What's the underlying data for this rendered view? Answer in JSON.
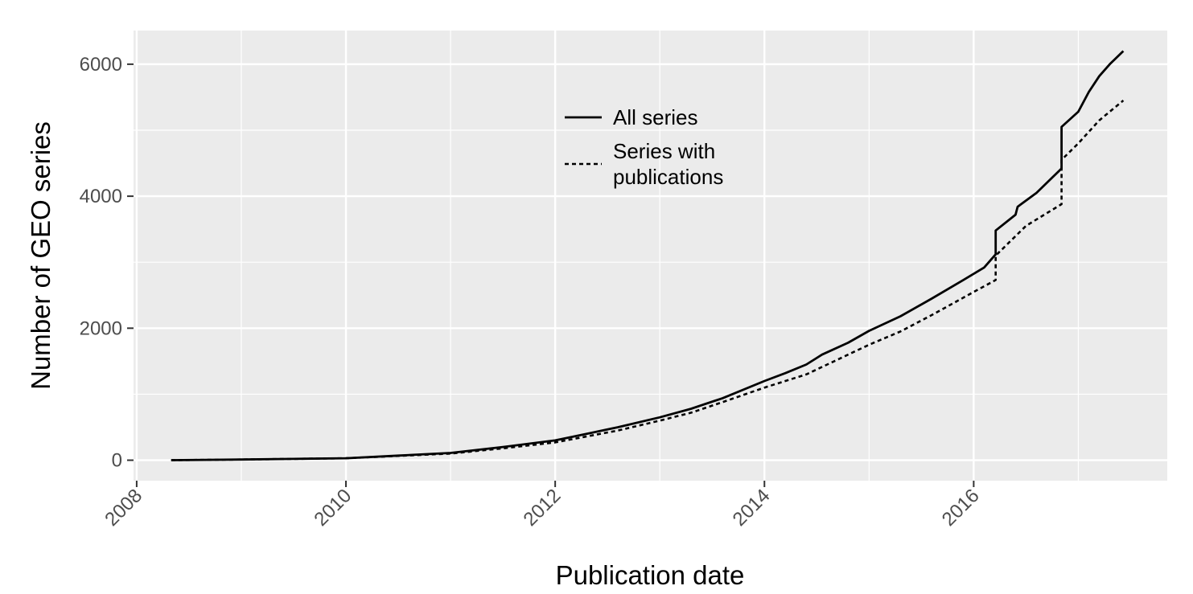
{
  "chart_data": {
    "type": "line",
    "title": "",
    "xlabel": "Publication date",
    "ylabel": "Number of GEO series",
    "xlim": [
      2007.97,
      2017.85
    ],
    "ylim": [
      -310,
      6510
    ],
    "x_ticks": [
      2008,
      2010,
      2012,
      2014,
      2016
    ],
    "x_tick_labels": [
      "2008",
      "2010",
      "2012",
      "2014",
      "2016"
    ],
    "y_ticks": [
      0,
      2000,
      4000,
      6000
    ],
    "y_tick_labels": [
      "0",
      "2000",
      "4000",
      "6000"
    ],
    "grid": true,
    "legend_position": "top-center",
    "legend": [
      {
        "label": "All series",
        "style": "solid"
      },
      {
        "label_lines": [
          "Series with",
          "publications"
        ],
        "style": "dashed"
      }
    ],
    "series": [
      {
        "name": "All series",
        "style": "solid",
        "x": [
          2008.33,
          2009.0,
          2009.5,
          2010.0,
          2010.5,
          2011.0,
          2011.5,
          2012.0,
          2012.3,
          2012.6,
          2013.0,
          2013.3,
          2013.6,
          2014.0,
          2014.2,
          2014.4,
          2014.55,
          2014.8,
          2015.0,
          2015.3,
          2015.6,
          2015.9,
          2016.1,
          2016.21,
          2016.21,
          2016.4,
          2016.42,
          2016.6,
          2016.84,
          2016.84,
          2017.0,
          2017.1,
          2017.2,
          2017.3,
          2017.43
        ],
        "y": [
          0,
          10,
          20,
          30,
          70,
          110,
          200,
          300,
          400,
          500,
          650,
          780,
          940,
          1200,
          1320,
          1450,
          1600,
          1780,
          1960,
          2180,
          2450,
          2730,
          2920,
          3120,
          3480,
          3720,
          3840,
          4050,
          4420,
          5050,
          5280,
          5580,
          5820,
          6000,
          6200
        ]
      },
      {
        "name": "Series with publications",
        "style": "dashed",
        "x": [
          2008.33,
          2009.0,
          2009.5,
          2010.0,
          2010.5,
          2011.0,
          2011.5,
          2012.0,
          2012.3,
          2012.6,
          2013.0,
          2013.3,
          2013.6,
          2014.0,
          2014.4,
          2014.8,
          2015.0,
          2015.3,
          2015.6,
          2016.0,
          2016.21,
          2016.21,
          2016.5,
          2016.84,
          2016.84,
          2017.0,
          2017.2,
          2017.43
        ],
        "y": [
          0,
          10,
          20,
          30,
          65,
          100,
          180,
          270,
          360,
          450,
          600,
          720,
          880,
          1100,
          1300,
          1600,
          1750,
          1950,
          2200,
          2550,
          2730,
          3100,
          3550,
          3880,
          4550,
          4800,
          5150,
          5450
        ]
      }
    ]
  }
}
